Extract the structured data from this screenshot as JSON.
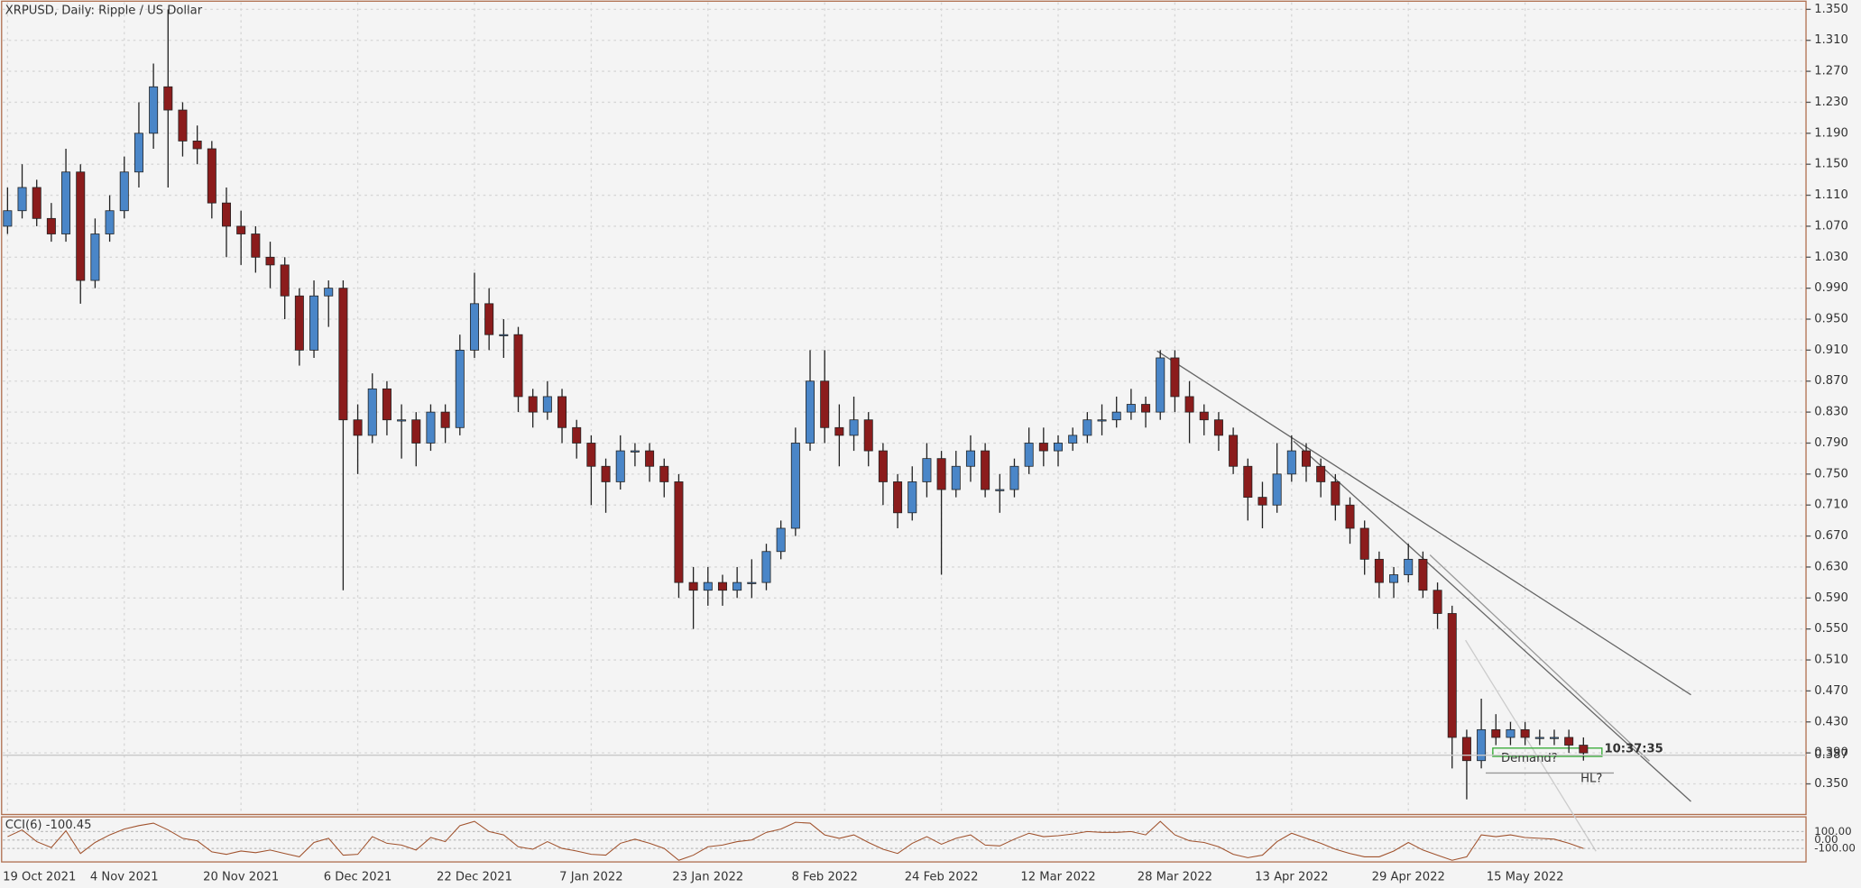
{
  "chart_data": {
    "type": "candlestick",
    "title": "XRPUSD, Daily: Ripple / US Dollar",
    "categories": [
      "19 Oct 2021",
      null,
      null,
      null,
      null,
      null,
      null,
      null,
      "4 Nov 2021",
      null,
      null,
      null,
      null,
      null,
      null,
      null,
      "20 Nov 2021",
      null,
      null,
      null,
      null,
      null,
      null,
      null,
      "6 Dec 2021",
      null,
      null,
      null,
      null,
      null,
      null,
      null,
      "22 Dec 2021",
      null,
      null,
      null,
      null,
      null,
      null,
      null,
      "7 Jan 2022",
      null,
      null,
      null,
      null,
      null,
      null,
      null,
      "23 Jan 2022",
      null,
      null,
      null,
      null,
      null,
      null,
      null,
      "8 Feb 2022",
      null,
      null,
      null,
      null,
      null,
      null,
      null,
      "24 Feb 2022",
      null,
      null,
      null,
      null,
      null,
      null,
      null,
      "12 Mar 2022",
      null,
      null,
      null,
      null,
      null,
      null,
      null,
      "28 Mar 2022",
      null,
      null,
      null,
      null,
      null,
      null,
      null,
      "13 Apr 2022",
      null,
      null,
      null,
      null,
      null,
      null,
      null,
      "29 Apr 2022",
      null,
      null,
      null,
      null,
      null,
      null,
      null,
      "15 May 2022",
      null,
      null,
      null,
      null
    ],
    "open": [
      1.07,
      1.09,
      1.12,
      1.08,
      1.06,
      1.14,
      1.0,
      1.06,
      1.09,
      1.14,
      1.19,
      1.25,
      1.22,
      1.18,
      1.17,
      1.1,
      1.07,
      1.06,
      1.03,
      1.02,
      0.98,
      0.91,
      0.98,
      0.99,
      0.82,
      0.8,
      0.86,
      0.82,
      0.82,
      0.79,
      0.83,
      0.81,
      0.91,
      0.97,
      0.93,
      0.93,
      0.85,
      0.83,
      0.85,
      0.81,
      0.79,
      0.76,
      0.74,
      0.78,
      0.78,
      0.76,
      0.74,
      0.61,
      0.6,
      0.61,
      0.6,
      0.61,
      0.61,
      0.65,
      0.68,
      0.79,
      0.87,
      0.81,
      0.8,
      0.82,
      0.78,
      0.74,
      0.7,
      0.74,
      0.77,
      0.73,
      0.76,
      0.78,
      0.73,
      0.73,
      0.76,
      0.79,
      0.78,
      0.79,
      0.8,
      0.82,
      0.82,
      0.83,
      0.84,
      0.83,
      0.9,
      0.85,
      0.83,
      0.82,
      0.8,
      0.76,
      0.72,
      0.71,
      0.75,
      0.78,
      0.76,
      0.74,
      0.71,
      0.68,
      0.64,
      0.61,
      0.62,
      0.64,
      0.6,
      0.57,
      0.41,
      0.38,
      0.42,
      0.41,
      0.42,
      0.41,
      0.41,
      0.41,
      0.4
    ],
    "high": [
      1.12,
      1.15,
      1.13,
      1.1,
      1.17,
      1.15,
      1.08,
      1.11,
      1.16,
      1.23,
      1.28,
      1.35,
      1.23,
      1.2,
      1.18,
      1.12,
      1.09,
      1.07,
      1.05,
      1.03,
      0.99,
      1.0,
      1.0,
      1.0,
      0.84,
      0.88,
      0.87,
      0.84,
      0.83,
      0.84,
      0.84,
      0.93,
      1.01,
      0.99,
      0.95,
      0.94,
      0.86,
      0.87,
      0.86,
      0.82,
      0.8,
      0.77,
      0.8,
      0.79,
      0.79,
      0.77,
      0.75,
      0.63,
      0.63,
      0.62,
      0.63,
      0.64,
      0.66,
      0.69,
      0.81,
      0.91,
      0.91,
      0.84,
      0.85,
      0.83,
      0.79,
      0.75,
      0.76,
      0.79,
      0.78,
      0.78,
      0.8,
      0.79,
      0.75,
      0.77,
      0.81,
      0.81,
      0.8,
      0.81,
      0.83,
      0.84,
      0.85,
      0.86,
      0.85,
      0.91,
      0.91,
      0.87,
      0.84,
      0.83,
      0.81,
      0.77,
      0.74,
      0.79,
      0.8,
      0.79,
      0.77,
      0.75,
      0.72,
      0.69,
      0.65,
      0.63,
      0.66,
      0.65,
      0.61,
      0.58,
      0.42,
      0.46,
      0.44,
      0.43,
      0.43,
      0.42,
      0.42,
      0.42,
      0.41
    ],
    "low": [
      1.06,
      1.08,
      1.07,
      1.05,
      1.05,
      0.97,
      0.99,
      1.05,
      1.08,
      1.12,
      1.17,
      1.12,
      1.16,
      1.15,
      1.08,
      1.03,
      1.02,
      1.01,
      0.99,
      0.95,
      0.89,
      0.9,
      0.94,
      0.6,
      0.75,
      0.79,
      0.8,
      0.77,
      0.76,
      0.78,
      0.79,
      0.8,
      0.9,
      0.91,
      0.9,
      0.83,
      0.81,
      0.82,
      0.79,
      0.77,
      0.71,
      0.7,
      0.73,
      0.76,
      0.74,
      0.72,
      0.59,
      0.55,
      0.58,
      0.58,
      0.59,
      0.59,
      0.6,
      0.64,
      0.67,
      0.78,
      0.79,
      0.76,
      0.78,
      0.76,
      0.71,
      0.68,
      0.69,
      0.72,
      0.62,
      0.72,
      0.74,
      0.72,
      0.7,
      0.72,
      0.75,
      0.76,
      0.76,
      0.78,
      0.79,
      0.8,
      0.81,
      0.82,
      0.81,
      0.82,
      0.83,
      0.79,
      0.8,
      0.78,
      0.75,
      0.69,
      0.68,
      0.7,
      0.74,
      0.74,
      0.72,
      0.69,
      0.66,
      0.62,
      0.59,
      0.59,
      0.61,
      0.59,
      0.55,
      0.37,
      0.33,
      0.37,
      0.4,
      0.4,
      0.4,
      0.4,
      0.4,
      0.39,
      0.38
    ],
    "close": [
      1.09,
      1.12,
      1.08,
      1.06,
      1.14,
      1.0,
      1.06,
      1.09,
      1.14,
      1.19,
      1.25,
      1.22,
      1.18,
      1.17,
      1.1,
      1.07,
      1.06,
      1.03,
      1.02,
      0.98,
      0.91,
      0.98,
      0.99,
      0.82,
      0.8,
      0.86,
      0.82,
      0.82,
      0.79,
      0.83,
      0.81,
      0.91,
      0.97,
      0.93,
      0.93,
      0.85,
      0.83,
      0.85,
      0.81,
      0.79,
      0.76,
      0.74,
      0.78,
      0.78,
      0.76,
      0.74,
      0.61,
      0.6,
      0.61,
      0.6,
      0.61,
      0.61,
      0.65,
      0.68,
      0.79,
      0.87,
      0.81,
      0.8,
      0.82,
      0.78,
      0.74,
      0.7,
      0.74,
      0.77,
      0.73,
      0.76,
      0.78,
      0.73,
      0.73,
      0.76,
      0.79,
      0.78,
      0.79,
      0.8,
      0.82,
      0.82,
      0.83,
      0.84,
      0.83,
      0.9,
      0.85,
      0.83,
      0.82,
      0.8,
      0.76,
      0.72,
      0.71,
      0.75,
      0.78,
      0.76,
      0.74,
      0.71,
      0.68,
      0.64,
      0.61,
      0.62,
      0.64,
      0.6,
      0.57,
      0.41,
      0.38,
      0.42,
      0.41,
      0.42,
      0.41,
      0.41,
      0.41,
      0.4,
      0.39
    ],
    "up_color": "#4a86c8",
    "down_color": "#8b1c1c",
    "ylim": [
      0.312,
      1.359
    ],
    "yticks": [
      {
        "value": 0.35,
        "label": "0.350"
      },
      {
        "value": 0.39,
        "label": "0.390"
      },
      {
        "value": 0.43,
        "label": "0.430"
      },
      {
        "value": 0.47,
        "label": "0.470"
      },
      {
        "value": 0.51,
        "label": "0.510"
      },
      {
        "value": 0.55,
        "label": "0.550"
      },
      {
        "value": 0.59,
        "label": "0.590"
      },
      {
        "value": 0.63,
        "label": "0.630"
      },
      {
        "value": 0.67,
        "label": "0.670"
      },
      {
        "value": 0.71,
        "label": "0.710"
      },
      {
        "value": 0.75,
        "label": "0.750"
      },
      {
        "value": 0.79,
        "label": "0.790"
      },
      {
        "value": 0.83,
        "label": "0.830"
      },
      {
        "value": 0.87,
        "label": "0.870"
      },
      {
        "value": 0.91,
        "label": "0.910"
      },
      {
        "value": 0.95,
        "label": "0.950"
      },
      {
        "value": 0.99,
        "label": "0.990"
      },
      {
        "value": 1.03,
        "label": "1.030"
      },
      {
        "value": 1.07,
        "label": "1.070"
      },
      {
        "value": 1.11,
        "label": "1.110"
      },
      {
        "value": 1.15,
        "label": "1.150"
      },
      {
        "value": 1.19,
        "label": "1.190"
      },
      {
        "value": 1.23,
        "label": "1.230"
      },
      {
        "value": 1.27,
        "label": "1.270"
      },
      {
        "value": 1.31,
        "label": "1.310"
      },
      {
        "value": 1.35,
        "label": "1.350"
      }
    ],
    "grid": true,
    "last_price": 0.387,
    "timer": "10:37:35",
    "annotations": [
      "Demand?",
      "HL?"
    ],
    "cci": {
      "label": "CCI(6) -100.45",
      "color": "#a0522d",
      "ylim": [
        -260,
        260
      ],
      "yticks": [
        {
          "value": 100,
          "label": "100.00"
        },
        {
          "value": 0,
          "label": "0.00"
        },
        {
          "value": -100,
          "label": "-100.00"
        }
      ],
      "values": [
        40,
        120,
        -20,
        -90,
        110,
        -160,
        -30,
        60,
        130,
        170,
        200,
        120,
        20,
        -10,
        -140,
        -170,
        -130,
        -150,
        -120,
        -160,
        -200,
        -30,
        20,
        -180,
        -170,
        40,
        -40,
        -60,
        -120,
        30,
        -20,
        170,
        220,
        100,
        60,
        -80,
        -110,
        -20,
        -100,
        -130,
        -170,
        -180,
        -40,
        10,
        -40,
        -100,
        -240,
        -180,
        -80,
        -60,
        -20,
        0,
        90,
        130,
        210,
        200,
        60,
        20,
        60,
        -30,
        -110,
        -160,
        -40,
        40,
        -50,
        20,
        60,
        -60,
        -70,
        10,
        80,
        40,
        50,
        70,
        100,
        90,
        90,
        100,
        60,
        220,
        60,
        -10,
        -30,
        -80,
        -170,
        -210,
        -180,
        -20,
        80,
        20,
        -40,
        -110,
        -160,
        -200,
        -200,
        -130,
        -30,
        -120,
        -180,
        -240,
        -200,
        60,
        40,
        60,
        30,
        20,
        10,
        -40,
        -100
      ]
    }
  }
}
